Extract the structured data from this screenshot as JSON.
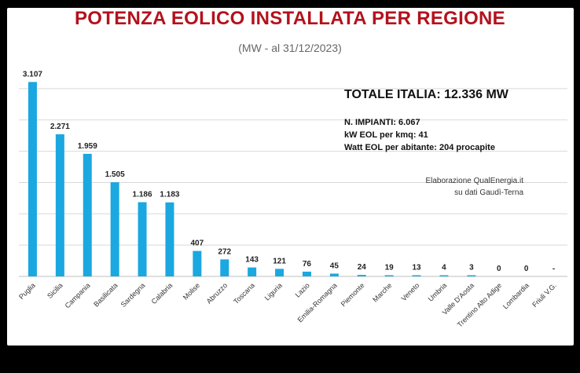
{
  "title": "POTENZA EOLICO INSTALLATA PER REGIONE",
  "subtitle": "(MW - al 31/12/2023)",
  "info": {
    "total": "TOTALE ITALIA: 12.336 MW",
    "lines": [
      "N. IMPIANTI: 6.067",
      "kW EOL per kmq: 41",
      "Watt EOL per abitante: 204 procapite"
    ]
  },
  "credit": {
    "line1": "Elaborazione QualEnergia.it",
    "line2": "su dati Gaudì-Terna"
  },
  "colors": {
    "bar": "#1ba8e0",
    "title": "#b3121c",
    "grid": "#d9d9d9"
  },
  "chart_data": {
    "type": "bar",
    "title": "POTENZA EOLICO INSTALLATA PER REGIONE",
    "subtitle": "(MW - al 31/12/2023)",
    "categories": [
      "Puglia",
      "Sicilia",
      "Campania",
      "Basilicata",
      "Sardegna",
      "Calabria",
      "Molise",
      "Abruzzo",
      "Toscana",
      "Liguria",
      "Lazio",
      "Emilia-Romagna",
      "Piemonte",
      "Marche",
      "Veneto",
      "Umbria",
      "Valle D'Aosta",
      "Trentino Alto Adige",
      "Lombardia",
      "Friuli V.G."
    ],
    "values": [
      3107,
      2271,
      1959,
      1505,
      1186,
      1183,
      407,
      272,
      143,
      121,
      76,
      45,
      24,
      19,
      13,
      4,
      3,
      0,
      0,
      null
    ],
    "data_labels": [
      "3.107",
      "2.271",
      "1.959",
      "1.505",
      "1.186",
      "1.183",
      "407",
      "272",
      "143",
      "121",
      "76",
      "45",
      "24",
      "19",
      "13",
      "4",
      "3",
      "0",
      "0",
      "-"
    ],
    "ylim": [
      0,
      3250
    ],
    "grid": true,
    "legend": "none"
  }
}
